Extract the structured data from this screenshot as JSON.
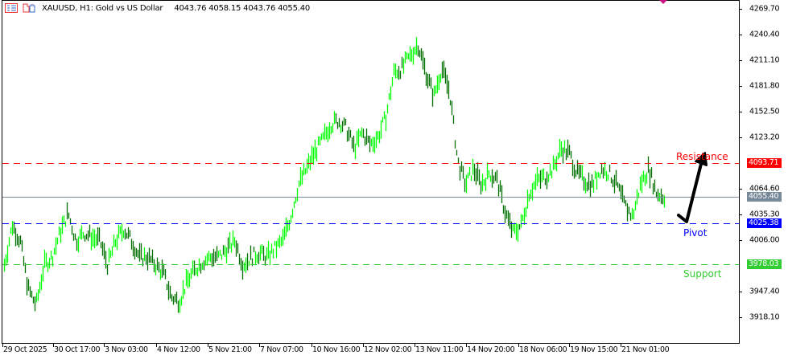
{
  "header": {
    "symbol_title": "XAUUSD, H1:  Gold vs US Dollar",
    "ohlc": "4043.76 4058.15 4043.76 4055.40",
    "icons": [
      "menu-list-icon",
      "one-click-trading-icon"
    ]
  },
  "colors": {
    "bull_bar": "#00ff00",
    "bear_bar": "#007000",
    "resistance": "#ff0000",
    "pivot": "#0000ff",
    "support": "#32cd32",
    "bid_line": "#778899"
  },
  "price_axis": {
    "labels": [
      "4269.70",
      "4240.40",
      "4211.10",
      "4181.80",
      "4152.50",
      "4123.20",
      "4064.60",
      "4035.30",
      "4006.00",
      "3947.40",
      "3918.10"
    ]
  },
  "time_axis": {
    "labels": [
      "29 Oct 2025",
      "30 Oct 17:00",
      "3 Nov 03:00",
      "4 Nov 12:00",
      "5 Nov 21:00",
      "7 Nov 07:00",
      "10 Nov 16:00",
      "12 Nov 02:00",
      "13 Nov 11:00",
      "14 Nov 20:00",
      "18 Nov 06:00",
      "19 Nov 15:00",
      "21 Nov 01:00"
    ]
  },
  "levels": {
    "resistance": {
      "label": "Resistance",
      "price": 4093.71,
      "tag": "4093.71"
    },
    "pivot": {
      "label": "Pivot",
      "price": 4025.38,
      "tag": "4025.38"
    },
    "support": {
      "label": "Support",
      "price": 3978.03,
      "tag": "3978.03"
    },
    "bid": {
      "price": 4055.4,
      "tag": "4055.40"
    }
  },
  "chart_data": {
    "type": "bar",
    "title": "XAUUSD, H1",
    "ylim": [
      3905,
      4280
    ],
    "approx_close_path": [
      3977.6,
      4023.4,
      4005.1,
      3950.1,
      3931.8,
      3977.6,
      3986.7,
      4014.2,
      4037.1,
      4005.1,
      4014.2,
      4009.6,
      4005.1,
      3977.6,
      4005.1,
      4018.8,
      4005.1,
      3986.7,
      3986.7,
      3977.6,
      3968.4,
      3941.0,
      3936.4,
      3959.3,
      3973.0,
      3982.2,
      3986.7,
      3986.7,
      3995.9,
      4005.1,
      3977.6,
      3986.7,
      3991.3,
      3986.7,
      3995.9,
      4005.1,
      4032.5,
      4069.2,
      4087.5,
      4105.8,
      4119.5,
      4137.9,
      4142.4,
      4133.3,
      4110.4,
      4128.7,
      4114.9,
      4124.1,
      4147.0,
      4197.4,
      4202.0,
      4215.7,
      4229.4,
      4197.4,
      4170.0,
      4202.0,
      4174.5,
      4096.6,
      4069.2,
      4087.5,
      4069.2,
      4082.9,
      4073.7,
      4037.1,
      4014.2,
      4023.4,
      4060.0,
      4073.7,
      4078.3,
      4087.5,
      4110.4,
      4105.8,
      4082.9,
      4073.7,
      4069.2,
      4087.5,
      4082.9,
      4069.2,
      4046.3,
      4032.5,
      4069.2,
      4087.5,
      4060.0,
      4055.4
    ]
  }
}
